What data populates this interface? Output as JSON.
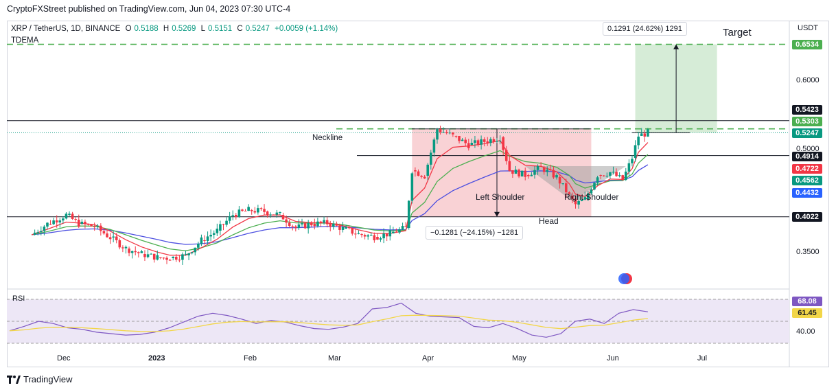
{
  "header": {
    "publisher_line": "CryptoFXStreet published on TradingView.com, Jun 04, 2023 07:30 UTC-4"
  },
  "symbol_line": {
    "name": "XRP / TetherUS, 1D, BINANCE",
    "o_label": "O",
    "o": "0.5188",
    "h_label": "H",
    "h": "0.5269",
    "l_label": "L",
    "l": "0.5151",
    "c_label": "C",
    "c": "0.5247",
    "change": "+0.0059 (+1.14%)"
  },
  "indicator_name": "TDEMA",
  "currency_label": "USDT",
  "footer": {
    "brand": "TradingView"
  },
  "colors": {
    "candle_up": "#089981",
    "candle_down": "#f23645",
    "ema_fast": "#f23645",
    "ema_mid": "#4caf50",
    "ema_slow": "#4b4ee0",
    "rsi_line": "#7e57c2",
    "rsi_ma": "#f2d648",
    "target_zone": "#c8e6c9",
    "pattern_zone": "#f8c7ca"
  },
  "annotations": {
    "target": "Target",
    "neckline": "Neckline",
    "left_shoulder": "Left Shoulder",
    "right_shoulder": "Right Shoulder",
    "head": "Head",
    "measure_up": "0.1291 (24.62%) 1291",
    "measure_down": "−0.1281 (−24.15%) −1281"
  },
  "price_tags": [
    {
      "value": "0.6534",
      "color": "#4caf50"
    },
    {
      "value": "0.5423",
      "color": "#131722"
    },
    {
      "value": "0.5303",
      "color": "#4caf50"
    },
    {
      "value": "0.5247",
      "color": "#089981"
    },
    {
      "value": "0.4914",
      "color": "#131722"
    },
    {
      "value": "0.4722",
      "color": "#f23645"
    },
    {
      "value": "0.4562",
      "color": "#089981"
    },
    {
      "value": "0.4432",
      "color": "#2962ff"
    },
    {
      "value": "0.4022",
      "color": "#131722"
    }
  ],
  "chart_data": [
    {
      "type": "candlestick",
      "title": "XRP / TetherUS, 1D, BINANCE",
      "ylabel": "USDT",
      "ylim": [
        0.33,
        0.67
      ],
      "y_ticks": [
        "0.6000",
        "0.5000",
        "0.3500"
      ],
      "x_ticks": [
        "Dec",
        "2023",
        "Feb",
        "Mar",
        "Apr",
        "May",
        "Jun",
        "Jul"
      ],
      "horizontal_levels": [
        0.6534,
        0.5423,
        0.5303,
        0.4914,
        0.4022
      ],
      "close_series": [
        {
          "date": "2022-11-20",
          "close": 0.376
        },
        {
          "date": "2022-11-25",
          "close": 0.392
        },
        {
          "date": "2022-12-01",
          "close": 0.405
        },
        {
          "date": "2022-12-05",
          "close": 0.392
        },
        {
          "date": "2022-12-10",
          "close": 0.388
        },
        {
          "date": "2022-12-15",
          "close": 0.372
        },
        {
          "date": "2022-12-20",
          "close": 0.356
        },
        {
          "date": "2022-12-25",
          "close": 0.348
        },
        {
          "date": "2022-12-30",
          "close": 0.343
        },
        {
          "date": "2023-01-03",
          "close": 0.342
        },
        {
          "date": "2023-01-08",
          "close": 0.346
        },
        {
          "date": "2023-01-13",
          "close": 0.368
        },
        {
          "date": "2023-01-18",
          "close": 0.382
        },
        {
          "date": "2023-01-23",
          "close": 0.405
        },
        {
          "date": "2023-01-28",
          "close": 0.412
        },
        {
          "date": "2023-02-02",
          "close": 0.41
        },
        {
          "date": "2023-02-07",
          "close": 0.405
        },
        {
          "date": "2023-02-12",
          "close": 0.386
        },
        {
          "date": "2023-02-17",
          "close": 0.392
        },
        {
          "date": "2023-02-22",
          "close": 0.393
        },
        {
          "date": "2023-02-27",
          "close": 0.385
        },
        {
          "date": "2023-03-04",
          "close": 0.377
        },
        {
          "date": "2023-03-09",
          "close": 0.373
        },
        {
          "date": "2023-03-14",
          "close": 0.378
        },
        {
          "date": "2023-03-19",
          "close": 0.386
        },
        {
          "date": "2023-03-21",
          "close": 0.47
        },
        {
          "date": "2023-03-25",
          "close": 0.462
        },
        {
          "date": "2023-03-29",
          "close": 0.53
        },
        {
          "date": "2023-04-03",
          "close": 0.52
        },
        {
          "date": "2023-04-08",
          "close": 0.507
        },
        {
          "date": "2023-04-13",
          "close": 0.512
        },
        {
          "date": "2023-04-18",
          "close": 0.518
        },
        {
          "date": "2023-04-21",
          "close": 0.47
        },
        {
          "date": "2023-04-26",
          "close": 0.463
        },
        {
          "date": "2023-05-01",
          "close": 0.474
        },
        {
          "date": "2023-05-06",
          "close": 0.46
        },
        {
          "date": "2023-05-10",
          "close": 0.433
        },
        {
          "date": "2023-05-12",
          "close": 0.42
        },
        {
          "date": "2023-05-15",
          "close": 0.428
        },
        {
          "date": "2023-05-19",
          "close": 0.463
        },
        {
          "date": "2023-05-23",
          "close": 0.467
        },
        {
          "date": "2023-05-27",
          "close": 0.456
        },
        {
          "date": "2023-05-30",
          "close": 0.488
        },
        {
          "date": "2023-06-01",
          "close": 0.52
        },
        {
          "date": "2023-06-04",
          "close": 0.5247
        }
      ]
    },
    {
      "type": "line",
      "title": "RSI",
      "ylim": [
        20,
        90
      ],
      "y_ticks": [
        "68.08",
        "61.45",
        "40.00"
      ],
      "series": [
        {
          "name": "RSI",
          "last": 68.08
        },
        {
          "name": "RSI MA",
          "last": 61.45
        }
      ],
      "rsi_values": [
        42,
        48,
        55,
        52,
        46,
        44,
        40,
        38,
        36,
        37,
        40,
        46,
        54,
        62,
        66,
        63,
        58,
        52,
        56,
        54,
        49,
        45,
        44,
        47,
        52,
        72,
        74,
        80,
        66,
        62,
        61,
        60,
        48,
        46,
        52,
        45,
        36,
        33,
        38,
        55,
        58,
        52,
        66,
        71,
        68
      ]
    }
  ]
}
